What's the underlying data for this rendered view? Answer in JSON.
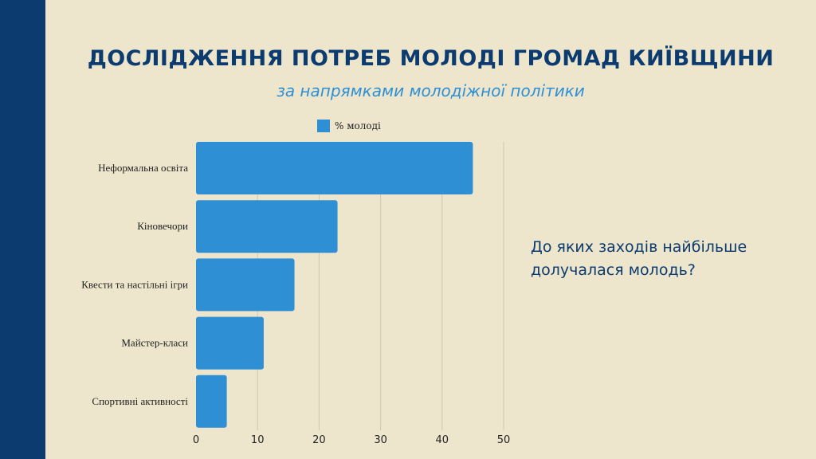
{
  "title": "ДОСЛІДЖЕННЯ ПОТРЕБ МОЛОДІ  ГРОМАД КИЇВЩИНИ",
  "subtitle": "за напрямками молодіжної політики",
  "question": "До яких заходів найбільше долучалася молодь?",
  "colors": {
    "accent": "#2e8fd4",
    "navy": "#0b3b6f",
    "background": "#ede6cc"
  },
  "chart_data": {
    "type": "bar",
    "orientation": "horizontal",
    "categories": [
      "Неформальна освіта",
      "Кіновечори",
      "Квести та настільні ігри",
      "Майстер-класи",
      "Спортивні активності"
    ],
    "series": [
      {
        "name": "% молоді",
        "values": [
          45,
          23,
          16,
          11,
          5
        ]
      }
    ],
    "xlim": [
      0,
      50
    ],
    "xticks": [
      "0",
      "10",
      "20",
      "30",
      "40",
      "50"
    ],
    "grid": true,
    "legend": "top"
  }
}
